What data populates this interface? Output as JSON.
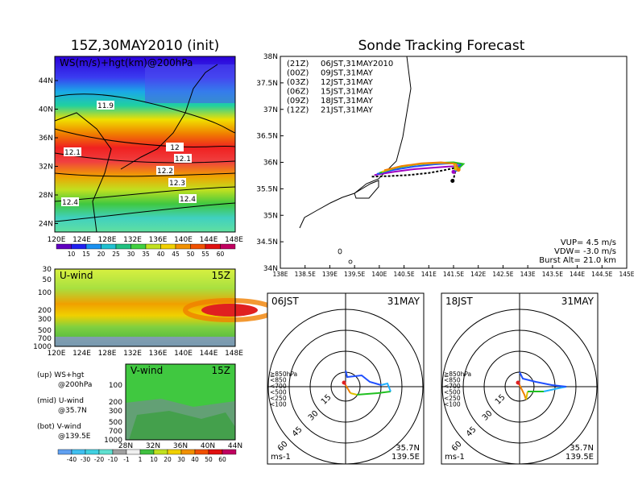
{
  "chart_data": {
    "left_title": "15Z,30MAY2010 (init)",
    "right_title": "Sonde Tracking Forecast",
    "ws_panel": {
      "type": "heatmap",
      "label": "WS(m/s)+hgt(km)@200hPa",
      "lat_ticks": [
        "44N",
        "40N",
        "36N",
        "32N",
        "28N",
        "24N"
      ],
      "lon_ticks": [
        "120E",
        "124E",
        "128E",
        "132E",
        "136E",
        "140E",
        "144E",
        "148E"
      ],
      "contour_labels": [
        "11.9",
        "12",
        "12.1",
        "12.1",
        "12.2",
        "12.3",
        "12.4",
        "12.4"
      ],
      "colorbar": [
        "10",
        "15",
        "20",
        "25",
        "30",
        "35",
        "40",
        "45",
        "50",
        "55",
        "60"
      ]
    },
    "u_panel": {
      "type": "heatmap",
      "label": "U-wind",
      "time": "15Z",
      "pressure_ticks": [
        "30",
        "50",
        "100",
        "200",
        "300",
        "500",
        "700",
        "1000"
      ],
      "lon_ticks": [
        "120E",
        "124E",
        "128E",
        "132E",
        "136E",
        "140E",
        "144E",
        "148E"
      ]
    },
    "v_panel": {
      "type": "heatmap",
      "label": "V-wind",
      "time": "15Z",
      "pressure_ticks": [
        "100",
        "200",
        "300",
        "500",
        "700",
        "1000"
      ],
      "lat_ticks": [
        "28N",
        "32N",
        "36N",
        "40N",
        "44N"
      ],
      "colorbar": [
        "-40",
        "-30",
        "-20",
        "-10",
        "-1",
        "1",
        "10",
        "20",
        "30",
        "40",
        "50",
        "60"
      ]
    },
    "notes": [
      {
        "title": "(up) WS+hgt",
        "sub": "@200hPa"
      },
      {
        "title": "(mid) U-wind",
        "sub": "@35.7N"
      },
      {
        "title": "(bot) V-wind",
        "sub": "@139.5E"
      }
    ],
    "track_map": {
      "type": "line",
      "lat_ticks": [
        "38N",
        "37.5N",
        "37N",
        "36.5N",
        "36N",
        "35.5N",
        "35N",
        "34.5N",
        "34N"
      ],
      "lon_ticks": [
        "138E",
        "138.5E",
        "139E",
        "139.5E",
        "140E",
        "140.5E",
        "141E",
        "141.5E",
        "142E",
        "142.5E",
        "143E",
        "143.5E",
        "144E",
        "144.5E",
        "145E"
      ],
      "xlim": [
        138,
        145
      ],
      "ylim": [
        34,
        38
      ],
      "legend": [
        {
          "z": "(21Z)",
          "jst": "06JST,31MAY2010",
          "color": "#000000"
        },
        {
          "z": "(00Z)",
          "jst": "09JST,31MAY",
          "color": "#a000c0"
        },
        {
          "z": "(03Z)",
          "jst": "12JST,31MAY",
          "color": "#2050ff"
        },
        {
          "z": "(06Z)",
          "jst": "15JST,31MAY",
          "color": "#20c020"
        },
        {
          "z": "(09Z)",
          "jst": "18JST,31MAY",
          "color": "#e0c000"
        },
        {
          "z": "(12Z)",
          "jst": "21JST,31MAY",
          "color": "#f08000"
        }
      ],
      "series": [
        {
          "color": "#000000",
          "points": [
            [
              139.85,
              35.73
            ],
            [
              140.2,
              35.74
            ],
            [
              140.6,
              35.76
            ],
            [
              141.0,
              35.8
            ],
            [
              141.3,
              35.85
            ],
            [
              141.55,
              35.9
            ],
            [
              141.5,
              35.68
            ],
            [
              141.48,
              35.65
            ]
          ]
        },
        {
          "color": "#a000c0",
          "points": [
            [
              139.9,
              35.76
            ],
            [
              140.3,
              35.82
            ],
            [
              140.7,
              35.87
            ],
            [
              141.1,
              35.9
            ],
            [
              141.4,
              35.92
            ],
            [
              141.6,
              35.93
            ],
            [
              141.5,
              35.82
            ]
          ]
        },
        {
          "color": "#2050ff",
          "points": [
            [
              139.95,
              35.78
            ],
            [
              140.3,
              35.86
            ],
            [
              140.7,
              35.92
            ],
            [
              141.1,
              35.96
            ],
            [
              141.45,
              35.98
            ],
            [
              141.65,
              35.96
            ],
            [
              141.55,
              35.86
            ]
          ]
        },
        {
          "color": "#20c020",
          "points": [
            [
              140.0,
              35.8
            ],
            [
              140.35,
              35.9
            ],
            [
              140.75,
              35.96
            ],
            [
              141.15,
              35.99
            ],
            [
              141.5,
              36.0
            ],
            [
              141.7,
              35.97
            ],
            [
              141.6,
              35.88
            ]
          ]
        },
        {
          "color": "#e0c000",
          "points": [
            [
              140.05,
              35.82
            ],
            [
              140.4,
              35.92
            ],
            [
              140.8,
              35.97
            ],
            [
              141.2,
              35.99
            ],
            [
              141.5,
              35.98
            ],
            [
              141.55,
              35.88
            ]
          ]
        },
        {
          "color": "#f08000",
          "points": [
            [
              140.1,
              35.85
            ],
            [
              140.45,
              35.93
            ],
            [
              140.85,
              35.98
            ],
            [
              141.25,
              36.0
            ],
            [
              141.55,
              35.97
            ],
            [
              141.6,
              35.86
            ]
          ]
        }
      ],
      "params": [
        "VUP=  4.5 m/s",
        "VDW= -3.0 m/s",
        "Burst Alt= 21.0 km"
      ]
    },
    "hodographs": [
      {
        "label": "06JST",
        "date": "31MAY",
        "ring_labels": [
          "15",
          "30",
          "45",
          "60"
        ],
        "legend": [
          "≧850hPa",
          "<850",
          "<700",
          "<500",
          "<250",
          "<100"
        ],
        "legend_colors": [
          "#e02020",
          "#f08000",
          "#e0c000",
          "#20c020",
          "#20b0ff",
          "#2050ff"
        ],
        "lat": "35.7N",
        "lon": "139.5E",
        "unit": "ms-1"
      },
      {
        "label": "18JST",
        "date": "31MAY",
        "ring_labels": [
          "15",
          "30",
          "45",
          "60"
        ],
        "legend": [
          "≧850hPa",
          "<850",
          "<700",
          "<500",
          "<250",
          "<100"
        ],
        "legend_colors": [
          "#e02020",
          "#f08000",
          "#e0c000",
          "#20c020",
          "#20b0ff",
          "#2050ff"
        ],
        "lat": "35.7N",
        "lon": "139.5E",
        "unit": "ms-1"
      }
    ]
  }
}
